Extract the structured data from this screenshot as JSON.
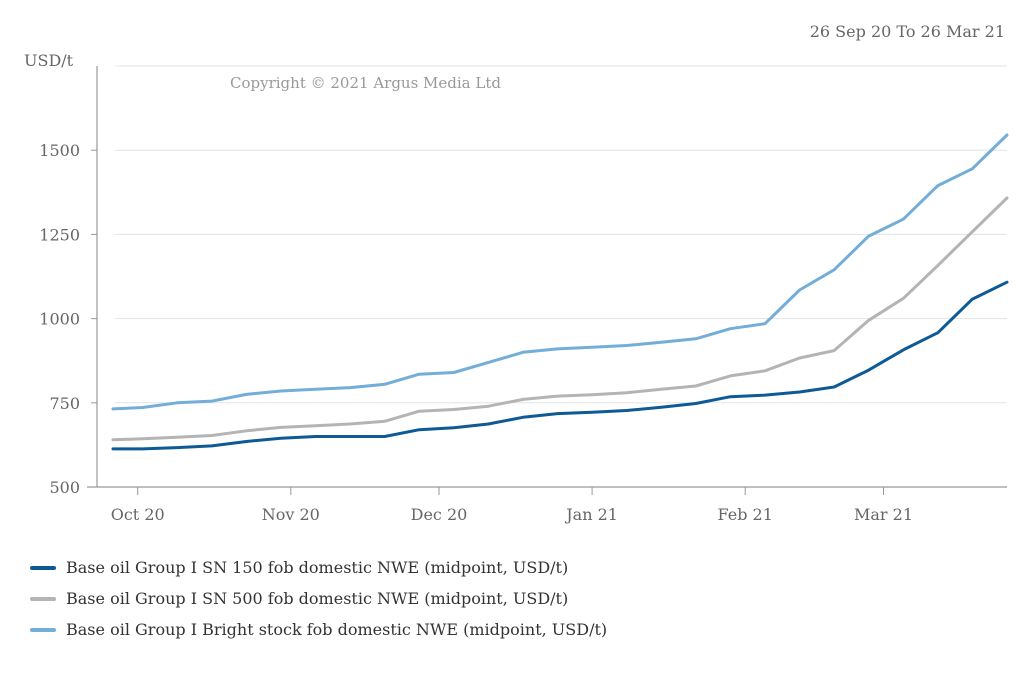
{
  "header": {
    "date_range": "26 Sep 20 To 26 Mar 21",
    "unit": "USD/t",
    "copyright": "Copyright © 2021 Argus Media Ltd"
  },
  "chart_data": {
    "type": "line",
    "title": "",
    "xlabel": "",
    "ylabel": "USD/t",
    "ylim": [
      500,
      1750
    ],
    "yticks": [
      500,
      750,
      1000,
      1250,
      1500
    ],
    "xlim": [
      "2020-09-26",
      "2021-03-26"
    ],
    "xticks": [
      {
        "label": "Oct 20",
        "date": "2020-10-01"
      },
      {
        "label": "Nov 20",
        "date": "2020-11-01"
      },
      {
        "label": "Dec 20",
        "date": "2020-12-01"
      },
      {
        "label": "Jan 21",
        "date": "2021-01-01"
      },
      {
        "label": "Feb 21",
        "date": "2021-02-01"
      },
      {
        "label": "Mar 21",
        "date": "2021-03-01"
      }
    ],
    "grid": true,
    "legend_position": "bottom",
    "x": [
      "2020-09-26",
      "2020-10-02",
      "2020-10-09",
      "2020-10-16",
      "2020-10-23",
      "2020-10-30",
      "2020-11-06",
      "2020-11-13",
      "2020-11-20",
      "2020-11-27",
      "2020-12-04",
      "2020-12-11",
      "2020-12-18",
      "2020-12-25",
      "2021-01-01",
      "2021-01-08",
      "2021-01-15",
      "2021-01-22",
      "2021-01-29",
      "2021-02-05",
      "2021-02-12",
      "2021-02-19",
      "2021-02-26",
      "2021-03-05",
      "2021-03-12",
      "2021-03-19",
      "2021-03-26"
    ],
    "series": [
      {
        "name": "Base oil Group I SN 150 fob domestic NWE (midpoint, USD/t)",
        "color": "#0d5a96",
        "values": [
          613,
          613,
          617,
          622,
          635,
          645,
          650,
          650,
          650,
          670,
          676,
          687,
          707,
          718,
          722,
          727,
          737,
          748,
          768,
          773,
          782,
          797,
          847,
          907,
          958,
          1058,
          1108
        ]
      },
      {
        "name": "Base oil Group I SN 500 fob domestic NWE (midpoint, USD/t)",
        "color": "#b4b4b4",
        "values": [
          640,
          643,
          648,
          653,
          667,
          677,
          682,
          687,
          695,
          725,
          730,
          740,
          760,
          770,
          774,
          780,
          790,
          800,
          830,
          845,
          883,
          905,
          995,
          1060,
          1158,
          1258,
          1358
        ]
      },
      {
        "name": "Base oil Group I Bright stock fob domestic NWE (midpoint, USD/t)",
        "color": "#72aed8",
        "values": [
          732,
          736,
          750,
          755,
          775,
          785,
          790,
          795,
          805,
          835,
          840,
          870,
          900,
          910,
          915,
          920,
          930,
          940,
          970,
          985,
          1085,
          1145,
          1245,
          1295,
          1395,
          1445,
          1545
        ]
      }
    ]
  }
}
